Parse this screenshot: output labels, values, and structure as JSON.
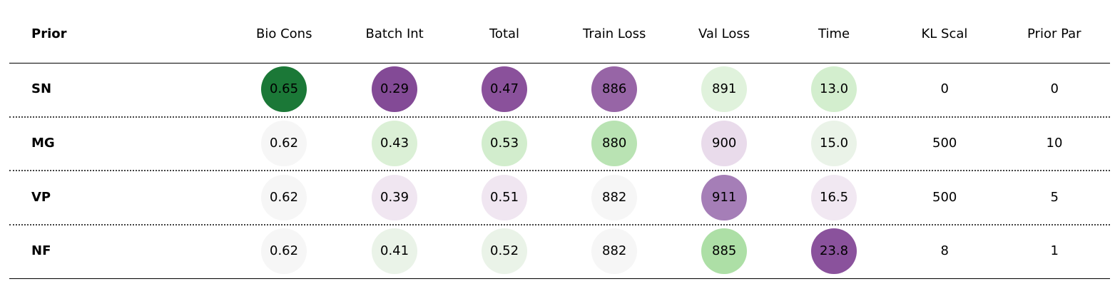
{
  "chart_data": {
    "type": "table",
    "columns": [
      "Prior",
      "Bio Cons",
      "Batch Int",
      "Total",
      "Train Loss",
      "Val Loss",
      "Time",
      "KL Scal",
      "Prior Par"
    ],
    "rows": [
      {
        "label": "SN",
        "values": [
          "0.65",
          "0.29",
          "0.47",
          "886",
          "891",
          "13.0",
          "0",
          "0"
        ],
        "colors": [
          "#1b7837",
          "#834a96",
          "#8a519b",
          "#9765a6",
          "#e0f2dc",
          "#d3eece",
          null,
          null
        ]
      },
      {
        "label": "MG",
        "values": [
          "0.62",
          "0.43",
          "0.53",
          "880",
          "900",
          "15.0",
          "500",
          "10"
        ],
        "colors": [
          "#f6f6f6",
          "#dbf0d6",
          "#d2edcd",
          "#b9e3b3",
          "#e9dbeb",
          "#eaf3e8",
          null,
          null
        ]
      },
      {
        "label": "VP",
        "values": [
          "0.62",
          "0.39",
          "0.51",
          "882",
          "911",
          "16.5",
          "500",
          "5"
        ],
        "colors": [
          "#f6f6f6",
          "#f0e6f1",
          "#f0e6f1",
          "#f6f6f6",
          "#a57eb7",
          "#f1e8f2",
          null,
          null
        ]
      },
      {
        "label": "NF",
        "values": [
          "0.62",
          "0.41",
          "0.52",
          "882",
          "885",
          "23.8",
          "8",
          "1"
        ],
        "colors": [
          "#f6f6f6",
          "#eaf3e8",
          "#eaf3e8",
          "#f6f6f6",
          "#addfa6",
          "#8a529c",
          null,
          null
        ]
      }
    ]
  }
}
